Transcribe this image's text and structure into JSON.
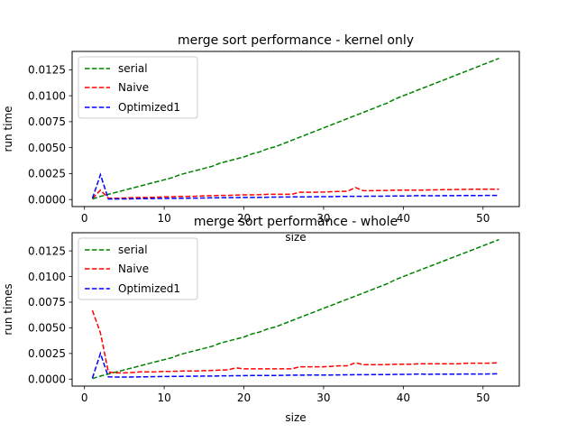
{
  "chart_data": [
    {
      "type": "line",
      "title": "merge sort performance - kernel only",
      "xlabel": "size",
      "ylabel": "run time",
      "xlim": [
        -1.55,
        54.55
      ],
      "ylim": [
        -0.00068,
        0.01427
      ],
      "xticks": [
        0,
        10,
        20,
        30,
        40,
        50
      ],
      "yticks": [
        0.0,
        0.0025,
        0.005,
        0.0075,
        0.01,
        0.0125
      ],
      "ytick_labels": [
        "0.0000",
        "0.0025",
        "0.0050",
        "0.0075",
        "0.0100",
        "0.0125"
      ],
      "legend": "top-left",
      "x": [
        1,
        2,
        3,
        4,
        5,
        6,
        7,
        8,
        9,
        10,
        11,
        12,
        13,
        14,
        15,
        16,
        17,
        18,
        19,
        20,
        21,
        22,
        23,
        24,
        25,
        26,
        27,
        28,
        29,
        30,
        31,
        32,
        33,
        34,
        35,
        36,
        37,
        38,
        39,
        40,
        41,
        42,
        43,
        44,
        45,
        46,
        47,
        48,
        49,
        50,
        51,
        52
      ],
      "series": [
        {
          "name": "serial",
          "color": "#008000",
          "values": [
            5e-05,
            0.0003,
            0.0005,
            0.0007,
            0.0009,
            0.0011,
            0.0013,
            0.0015,
            0.0017,
            0.0019,
            0.0021,
            0.0024,
            0.0026,
            0.0028,
            0.003,
            0.0032,
            0.0035,
            0.0037,
            0.0039,
            0.0041,
            0.0044,
            0.0046,
            0.0049,
            0.0051,
            0.0054,
            0.0057,
            0.006,
            0.0063,
            0.0066,
            0.0069,
            0.0072,
            0.0075,
            0.0078,
            0.0081,
            0.0084,
            0.0087,
            0.009,
            0.0093,
            0.0097,
            0.01,
            0.0103,
            0.0106,
            0.0109,
            0.0112,
            0.0115,
            0.0118,
            0.0121,
            0.0124,
            0.0127,
            0.013,
            0.0133,
            0.0136
          ]
        },
        {
          "name": "Naive",
          "color": "#ff0000",
          "values": [
            0.0001,
            0.0009,
            0.00015,
            0.00012,
            0.00015,
            0.00018,
            0.0002,
            0.0002,
            0.00022,
            0.00025,
            0.00027,
            0.0003,
            0.0003,
            0.00032,
            0.00035,
            0.00037,
            0.0004,
            0.0004,
            0.00042,
            0.00045,
            0.00045,
            0.00047,
            0.0005,
            0.0005,
            0.0005,
            0.0005,
            0.0007,
            0.0007,
            0.0007,
            0.00072,
            0.00075,
            0.00078,
            0.0008,
            0.00115,
            0.00085,
            0.00085,
            0.00087,
            0.00088,
            0.0009,
            0.0009,
            0.0009,
            0.0009,
            0.00092,
            0.00093,
            0.00095,
            0.00095,
            0.00097,
            0.00098,
            0.001,
            0.001,
            0.001,
            0.001
          ]
        },
        {
          "name": "Optimized1",
          "color": "#0000ff",
          "values": [
            0.0001,
            0.0024,
            5e-05,
            5e-05,
            6e-05,
            7e-05,
            8e-05,
            9e-05,
            0.0001,
            0.0001,
            0.00011,
            0.00012,
            0.00013,
            0.00014,
            0.00015,
            0.00016,
            0.00017,
            0.00018,
            0.00019,
            0.0002,
            0.0002,
            0.00021,
            0.00022,
            0.00023,
            0.00024,
            0.00025,
            0.00026,
            0.00026,
            0.00027,
            0.00028,
            0.00028,
            0.00029,
            0.0003,
            0.00031,
            0.00031,
            0.00032,
            0.00032,
            0.00033,
            0.00034,
            0.00034,
            0.00035,
            0.00038,
            0.00036,
            0.00036,
            0.00037,
            0.00037,
            0.00038,
            0.00038,
            0.00039,
            0.00039,
            0.0004,
            0.0004
          ]
        }
      ]
    },
    {
      "type": "line",
      "title": "merge sort performance -  whole",
      "xlabel": "size",
      "ylabel": "run times",
      "xlim": [
        -1.55,
        54.55
      ],
      "ylim": [
        -0.00068,
        0.01427
      ],
      "xticks": [
        0,
        10,
        20,
        30,
        40,
        50
      ],
      "yticks": [
        0.0,
        0.0025,
        0.005,
        0.0075,
        0.01,
        0.0125
      ],
      "ytick_labels": [
        "0.0000",
        "0.0025",
        "0.0050",
        "0.0075",
        "0.0100",
        "0.0125"
      ],
      "legend": "top-left",
      "x": [
        1,
        2,
        3,
        4,
        5,
        6,
        7,
        8,
        9,
        10,
        11,
        12,
        13,
        14,
        15,
        16,
        17,
        18,
        19,
        20,
        21,
        22,
        23,
        24,
        25,
        26,
        27,
        28,
        29,
        30,
        31,
        32,
        33,
        34,
        35,
        36,
        37,
        38,
        39,
        40,
        41,
        42,
        43,
        44,
        45,
        46,
        47,
        48,
        49,
        50,
        51,
        52
      ],
      "series": [
        {
          "name": "serial",
          "color": "#008000",
          "values": [
            5e-05,
            0.0003,
            0.0005,
            0.0007,
            0.0009,
            0.0011,
            0.0013,
            0.0015,
            0.0017,
            0.0019,
            0.0021,
            0.0024,
            0.0026,
            0.0028,
            0.003,
            0.0032,
            0.0035,
            0.0037,
            0.0039,
            0.0041,
            0.0044,
            0.0046,
            0.0049,
            0.0051,
            0.0054,
            0.0057,
            0.006,
            0.0063,
            0.0066,
            0.0069,
            0.0072,
            0.0075,
            0.0078,
            0.0081,
            0.0084,
            0.0087,
            0.009,
            0.0093,
            0.0097,
            0.01,
            0.0103,
            0.0106,
            0.0109,
            0.0112,
            0.0115,
            0.0118,
            0.0121,
            0.0124,
            0.0127,
            0.013,
            0.0133,
            0.0136
          ]
        },
        {
          "name": "Naive",
          "color": "#ff0000",
          "values": [
            0.0067,
            0.0045,
            0.0007,
            0.0006,
            0.0006,
            0.00065,
            0.0007,
            0.0007,
            0.00072,
            0.00075,
            0.00075,
            0.00078,
            0.0008,
            0.0008,
            0.00082,
            0.00085,
            0.00088,
            0.0009,
            0.0011,
            0.001,
            0.001,
            0.001,
            0.001,
            0.001,
            0.001,
            0.001,
            0.0012,
            0.0012,
            0.0012,
            0.0012,
            0.00125,
            0.0013,
            0.0013,
            0.0016,
            0.0014,
            0.0014,
            0.0014,
            0.00142,
            0.00145,
            0.00145,
            0.00145,
            0.0015,
            0.0015,
            0.0015,
            0.0015,
            0.0015,
            0.0015,
            0.00155,
            0.00155,
            0.00155,
            0.00155,
            0.0016
          ]
        },
        {
          "name": "Optimized1",
          "color": "#0000ff",
          "values": [
            0.0001,
            0.0025,
            0.00022,
            0.0002,
            0.0002,
            0.00021,
            0.00022,
            0.00023,
            0.00024,
            0.00025,
            0.00026,
            0.00027,
            0.00028,
            0.00029,
            0.0003,
            0.0003,
            0.00031,
            0.00032,
            0.00033,
            0.00034,
            0.00035,
            0.00035,
            0.00036,
            0.00036,
            0.00037,
            0.00038,
            0.00038,
            0.00039,
            0.0004,
            0.0004,
            0.0004,
            0.00041,
            0.00042,
            0.00043,
            0.00043,
            0.00044,
            0.00045,
            0.00045,
            0.00046,
            0.00046,
            0.00047,
            0.0005,
            0.00047,
            0.00048,
            0.00048,
            0.00049,
            0.00049,
            0.0005,
            0.0005,
            0.0005,
            0.00051,
            0.00052
          ]
        }
      ]
    }
  ]
}
